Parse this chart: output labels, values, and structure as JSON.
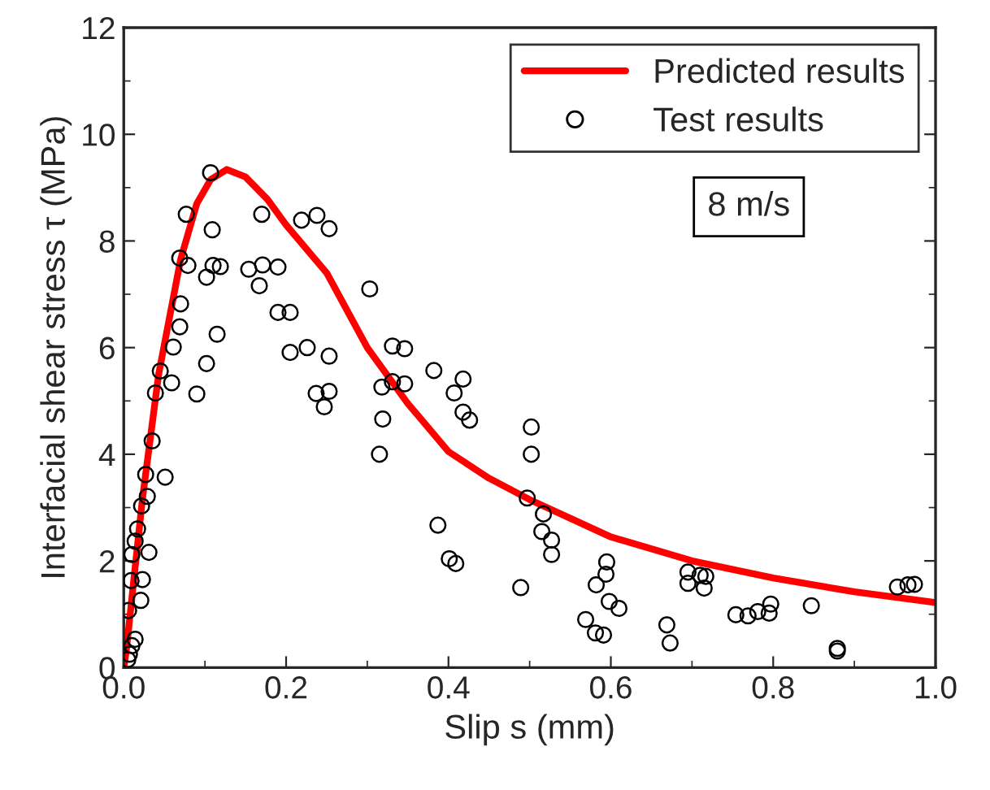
{
  "chart_data": {
    "type": "scatter",
    "xlabel": "Slip s (mm)",
    "ylabel": "Interfacial shear stress τ (MPa)",
    "xlim": [
      0,
      1
    ],
    "xticks": [
      {
        "value": 0,
        "label": "0.0"
      },
      {
        "value": 0.2,
        "label": "0.2"
      },
      {
        "value": 0.4,
        "label": "0.4"
      },
      {
        "value": 0.6,
        "label": "0.6"
      },
      {
        "value": 0.8,
        "label": "0.8"
      },
      {
        "value": 1,
        "label": "1.0"
      }
    ],
    "ylim": [
      0,
      12
    ],
    "yticks": [
      0,
      2,
      4,
      6,
      8,
      10,
      12
    ],
    "grid": false,
    "legend": "top right",
    "annotations": [
      "8 m/s"
    ],
    "series": [
      {
        "name": "Predicted results",
        "type": "line",
        "color": "#ff0000",
        "marker": "none",
        "line_style": "solid",
        "x": [
          0,
          0.003,
          0.023,
          0.043,
          0.07,
          0.09,
          0.107,
          0.127,
          0.15,
          0.177,
          0.2,
          0.25,
          0.3,
          0.35,
          0.4,
          0.45,
          0.5,
          0.6,
          0.7,
          0.8,
          0.9,
          1.0
        ],
        "values": [
          0,
          0.3,
          3.16,
          5.5,
          7.65,
          8.7,
          9.15,
          9.34,
          9.2,
          8.78,
          8.3,
          7.4,
          6.0,
          4.95,
          4.05,
          3.55,
          3.15,
          2.45,
          2.0,
          1.68,
          1.42,
          1.22
        ]
      },
      {
        "name": "Test results",
        "color": "#000000",
        "marker": "circle",
        "x": [
          0.107,
          0.077,
          0.109,
          0.069,
          0.079,
          0.102,
          0.11,
          0.119,
          0.07,
          0.069,
          0.061,
          0.115,
          0.102,
          0.045,
          0.059,
          0.039,
          0.09,
          0.035,
          0.027,
          0.051,
          0.029,
          0.022,
          0.017,
          0.014,
          0.031,
          0.01,
          0.023,
          0.009,
          0.021,
          0.006,
          0.014,
          0.01,
          0.007,
          0.005,
          0.154,
          0.171,
          0.19,
          0.167,
          0.17,
          0.219,
          0.238,
          0.253,
          0.19,
          0.205,
          0.205,
          0.226,
          0.253,
          0.237,
          0.253,
          0.247,
          0.303,
          0.331,
          0.346,
          0.382,
          0.318,
          0.331,
          0.346,
          0.319,
          0.315,
          0.387,
          0.418,
          0.407,
          0.418,
          0.426,
          0.401,
          0.409,
          0.489,
          0.502,
          0.502,
          0.497,
          0.517,
          0.515,
          0.527,
          0.527,
          0.595,
          0.594,
          0.582,
          0.598,
          0.61,
          0.569,
          0.581,
          0.591,
          0.669,
          0.673,
          0.695,
          0.695,
          0.71,
          0.717,
          0.715,
          0.754,
          0.769,
          0.781,
          0.795,
          0.797,
          0.847,
          0.879,
          0.879,
          0.953,
          0.966,
          0.974
        ],
        "values": [
          9.28,
          8.5,
          8.21,
          7.68,
          7.54,
          7.32,
          7.54,
          7.52,
          6.82,
          6.39,
          6.01,
          6.25,
          5.7,
          5.56,
          5.34,
          5.15,
          5.13,
          4.25,
          3.62,
          3.57,
          3.21,
          3.03,
          2.6,
          2.37,
          2.16,
          2.12,
          1.65,
          1.63,
          1.26,
          1.07,
          0.53,
          0.41,
          0.25,
          0.15,
          7.47,
          7.55,
          7.51,
          7.16,
          8.5,
          8.39,
          8.48,
          8.23,
          6.66,
          6.66,
          5.91,
          6.0,
          5.84,
          5.14,
          5.18,
          4.89,
          7.1,
          6.03,
          5.98,
          5.57,
          5.26,
          5.36,
          5.32,
          4.66,
          4.0,
          2.67,
          5.41,
          5.15,
          4.79,
          4.64,
          2.04,
          1.95,
          1.5,
          4.51,
          4.0,
          3.18,
          2.88,
          2.55,
          2.39,
          2.12,
          1.98,
          1.75,
          1.55,
          1.24,
          1.11,
          0.9,
          0.65,
          0.61,
          0.8,
          0.46,
          1.79,
          1.58,
          1.73,
          1.71,
          1.49,
          0.99,
          0.97,
          1.05,
          1.02,
          1.19,
          1.16,
          0.36,
          0.31,
          1.51,
          1.55,
          1.56
        ]
      }
    ]
  }
}
